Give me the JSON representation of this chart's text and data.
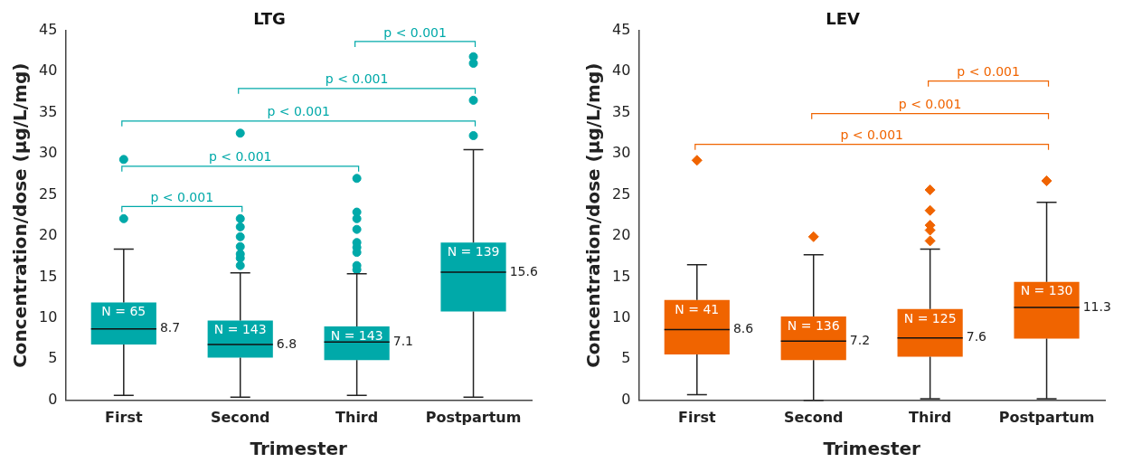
{
  "chart_data": [
    {
      "type": "box",
      "title": "LTG",
      "xlabel": "Trimester",
      "ylabel": "Concentration/dose (µg/L/mg)",
      "categories": [
        "First",
        "Second",
        "Third",
        "Postpartum"
      ],
      "ylim": [
        0,
        45
      ],
      "yticks": [
        0,
        5,
        10,
        15,
        20,
        25,
        30,
        35,
        40,
        45
      ],
      "grid": false,
      "legend": false,
      "marker": "circle",
      "series": [
        {
          "color": "#00a9a9",
          "boxes": [
            {
              "low": 0.6,
              "q1": 6.8,
              "median": 8.7,
              "q3": 11.9,
              "high": 18.4,
              "outliers": [
                22.1,
                29.3
              ]
            },
            {
              "low": 0.4,
              "q1": 5.2,
              "median": 6.8,
              "q3": 9.7,
              "high": 15.5,
              "outliers": [
                16.4,
                17.3,
                17.8,
                18.7,
                19.9,
                21.1,
                22.1,
                32.5
              ]
            },
            {
              "low": 0.6,
              "q1": 4.9,
              "median": 7.1,
              "q3": 9.0,
              "high": 15.4,
              "outliers": [
                15.9,
                16.4,
                18.0,
                18.6,
                19.2,
                20.8,
                22.1,
                22.9,
                27.0
              ]
            },
            {
              "low": 0.4,
              "q1": 10.8,
              "median": 15.6,
              "q3": 19.2,
              "high": 30.5,
              "outliers": [
                32.2,
                36.5,
                41.0,
                41.8
              ]
            }
          ]
        }
      ],
      "annotations": [
        "N = 65",
        "N = 143",
        "N = 143",
        "N = 139",
        {
          "text": "8.7",
          "x": "First",
          "y": 8.7
        },
        {
          "text": "6.8",
          "x": "Second",
          "y": 6.8
        },
        {
          "text": "7.1",
          "x": "Third",
          "y": 7.1
        },
        {
          "text": "15.6",
          "x": "Postpartum",
          "y": 15.6
        },
        "p < 0.001",
        "p < 0.001",
        "p < 0.001",
        "p < 0.001",
        "p < 0.001"
      ]
    },
    {
      "type": "box",
      "title": "LEV",
      "xlabel": "Trimester",
      "ylabel": "Concentration/dose (µg/L/mg)",
      "categories": [
        "First",
        "Second",
        "Third",
        "Postpartum"
      ],
      "ylim": [
        0,
        45
      ],
      "yticks": [
        0,
        5,
        10,
        15,
        20,
        25,
        30,
        35,
        40,
        45
      ],
      "grid": false,
      "legend": false,
      "marker": "diamond",
      "series": [
        {
          "color": "#f06400",
          "boxes": [
            {
              "low": 0.7,
              "q1": 5.6,
              "median": 8.6,
              "q3": 12.2,
              "high": 16.5,
              "outliers": [
                29.2
              ]
            },
            {
              "low": 0,
              "q1": 4.9,
              "median": 7.2,
              "q3": 10.2,
              "high": 17.7,
              "outliers": [
                19.9
              ]
            },
            {
              "low": 0.2,
              "q1": 5.3,
              "median": 7.6,
              "q3": 11.1,
              "high": 18.4,
              "outliers": [
                19.4,
                20.7,
                21.3,
                23.1,
                25.6
              ]
            },
            {
              "low": 0.2,
              "q1": 7.5,
              "median": 11.3,
              "q3": 14.4,
              "high": 24.1,
              "outliers": [
                26.7
              ]
            }
          ]
        }
      ],
      "annotations": [
        "N = 41",
        "N = 136",
        "N = 125",
        "N = 130",
        {
          "text": "8.6",
          "x": "First",
          "y": 8.6
        },
        {
          "text": "7.2",
          "x": "Second",
          "y": 7.2
        },
        {
          "text": "7.6",
          "x": "Third",
          "y": 7.6
        },
        {
          "text": "11.3",
          "x": "Postpartum",
          "y": 11.3
        },
        "p < 0.001",
        "p < 0.001",
        "p < 0.001"
      ]
    }
  ]
}
